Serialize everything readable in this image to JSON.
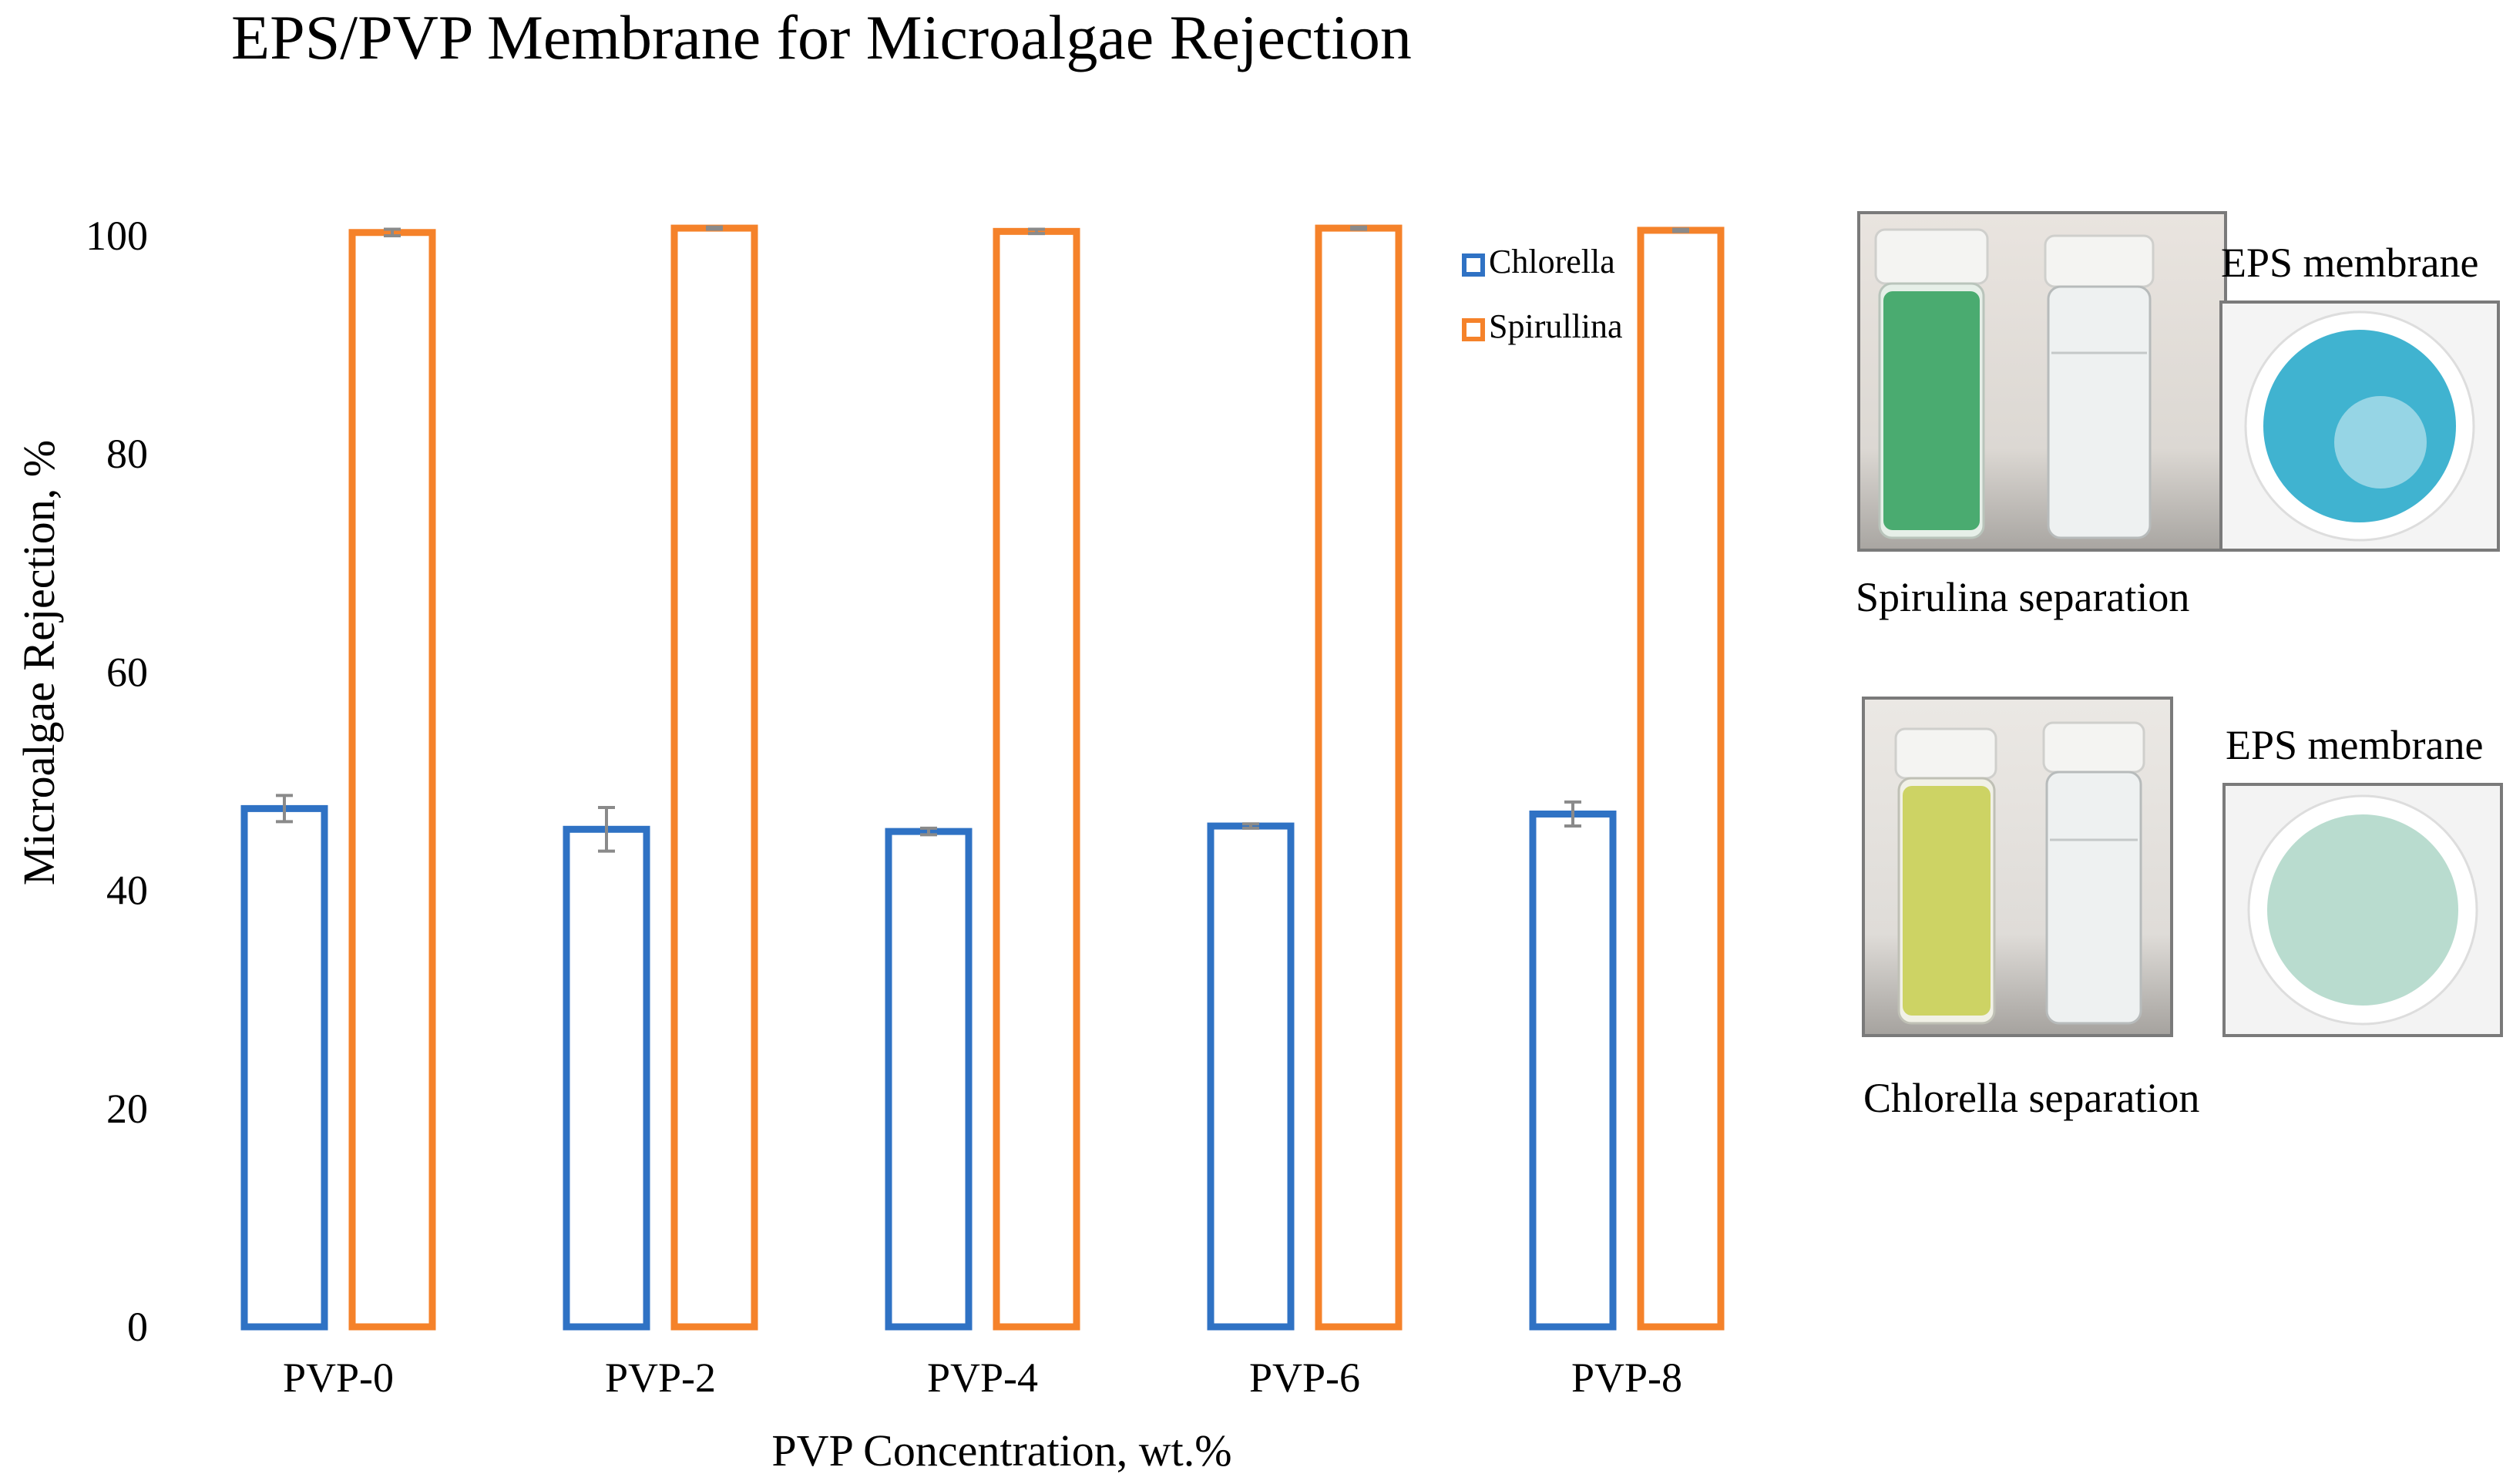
{
  "chart_data": {
    "type": "bar",
    "title": "EPS/PVP Membrane for Microalgae Rejection",
    "xlabel": "PVP Concentration, wt.%",
    "ylabel": "Microalgae Rejection, %",
    "categories": [
      "PVP-0",
      "PVP-2",
      "PVP-4",
      "PVP-6",
      "PVP-8"
    ],
    "ylim": [
      0,
      100
    ],
    "yticks": [
      0,
      20,
      40,
      60,
      80,
      100
    ],
    "grid": false,
    "legend_position": "top-right",
    "series": [
      {
        "name": "Chlorella",
        "color": "#2f72c4",
        "values": [
          47.5,
          45.6,
          45.4,
          45.9,
          47.0
        ],
        "errors": [
          1.2,
          2.0,
          0.3,
          0.2,
          1.1
        ]
      },
      {
        "name": "Spirullina",
        "color": "#f5822a",
        "values": [
          100.3,
          100.7,
          100.4,
          100.7,
          100.5
        ],
        "errors": [
          0.3,
          0.1,
          0.2,
          0.1,
          0.1
        ]
      }
    ]
  },
  "photos": {
    "spirulina": {
      "caption": "Spirulina separation",
      "membrane_label": "EPS membrane",
      "liquid_color": "#2e9f5a",
      "stain_color": "#1fa6c8"
    },
    "chlorella": {
      "caption": "Chlorella separation",
      "membrane_label": "EPS membrane",
      "liquid_color": "#c9cf55",
      "stain_color": "#7fbfa8"
    }
  }
}
